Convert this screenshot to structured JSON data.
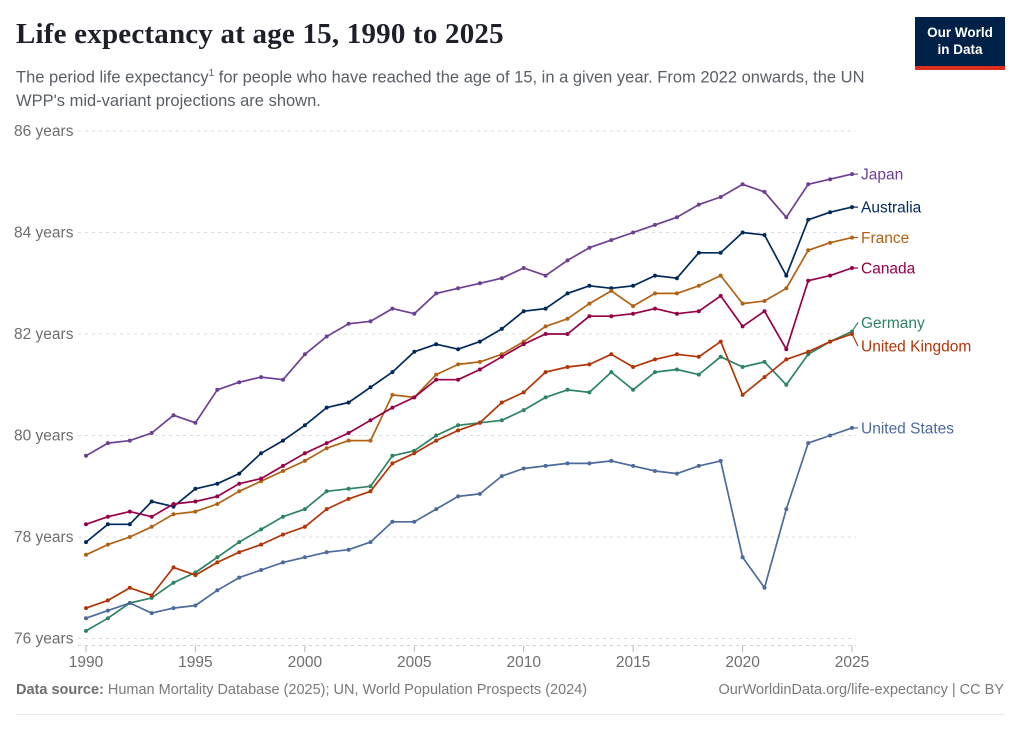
{
  "header": {
    "title": "Life expectancy at age 15, 1990 to 2025",
    "subtitle_pre": "The period life expectancy",
    "subtitle_sup": "1",
    "subtitle_post": " for people who have reached the age of 15, in a given year. From 2022 onwards, the UN WPP's mid-variant projections are shown."
  },
  "logo": {
    "line1": "Our World",
    "line2": "in Data",
    "bg_color": "#002147",
    "accent_color": "#dc2e1c"
  },
  "footer": {
    "source_label": "Data source:",
    "source_text": " Human Mortality Database (2025); UN, World Population Prospects (2024)",
    "citation": "OurWorldinData.org/life-expectancy | CC BY"
  },
  "chart_data": {
    "type": "line",
    "title": "Life expectancy at age 15, 1990 to 2025",
    "xlabel": "",
    "ylabel": "years",
    "xlim": [
      1990,
      2025
    ],
    "ylim": [
      75.8,
      86.3
    ],
    "grid": "horizontal-dashed",
    "legend_position": "right-end-labels",
    "x_ticks": [
      1990,
      1995,
      2000,
      2005,
      2010,
      2015,
      2020,
      2025
    ],
    "y_ticks": [
      {
        "value": 86,
        "label": "86 years"
      },
      {
        "value": 84,
        "label": "84 years"
      },
      {
        "value": 82,
        "label": "82 years"
      },
      {
        "value": 80,
        "label": "80 years"
      },
      {
        "value": 78,
        "label": "78 years"
      },
      {
        "value": 76,
        "label": "76 years"
      }
    ],
    "x": [
      1990,
      1991,
      1992,
      1993,
      1994,
      1995,
      1996,
      1997,
      1998,
      1999,
      2000,
      2001,
      2002,
      2003,
      2004,
      2005,
      2006,
      2007,
      2008,
      2009,
      2010,
      2011,
      2012,
      2013,
      2014,
      2015,
      2016,
      2017,
      2018,
      2019,
      2020,
      2021,
      2022,
      2023,
      2024,
      2025
    ],
    "series": [
      {
        "name": "Japan",
        "color": "#6d3e91",
        "label_dy": 0,
        "values": [
          79.6,
          79.85,
          79.9,
          80.05,
          80.4,
          80.25,
          80.9,
          81.05,
          81.15,
          81.1,
          81.6,
          81.95,
          82.2,
          82.25,
          82.5,
          82.4,
          82.8,
          82.9,
          83.0,
          83.1,
          83.3,
          83.15,
          83.45,
          83.7,
          83.85,
          84.0,
          84.15,
          84.3,
          84.55,
          84.7,
          84.95,
          84.8,
          84.3,
          84.95,
          85.05,
          85.15
        ]
      },
      {
        "name": "Australia",
        "color": "#00295b",
        "label_dy": 0,
        "values": [
          77.9,
          78.25,
          78.25,
          78.7,
          78.6,
          78.95,
          79.05,
          79.25,
          79.65,
          79.9,
          80.2,
          80.55,
          80.65,
          80.95,
          81.25,
          81.65,
          81.8,
          81.7,
          81.85,
          82.1,
          82.45,
          82.5,
          82.8,
          82.95,
          82.9,
          82.95,
          83.15,
          83.1,
          83.6,
          83.6,
          84.0,
          83.95,
          83.15,
          84.25,
          84.4,
          84.5
        ]
      },
      {
        "name": "France",
        "color": "#b16214",
        "label_dy": 0,
        "values": [
          77.65,
          77.85,
          78.0,
          78.2,
          78.45,
          78.5,
          78.65,
          78.9,
          79.1,
          79.3,
          79.5,
          79.75,
          79.9,
          79.9,
          80.8,
          80.75,
          81.2,
          81.4,
          81.45,
          81.6,
          81.85,
          82.15,
          82.3,
          82.6,
          82.85,
          82.55,
          82.8,
          82.8,
          82.95,
          83.15,
          82.6,
          82.65,
          82.9,
          83.65,
          83.8,
          83.9
        ]
      },
      {
        "name": "Canada",
        "color": "#970046",
        "label_dy": 0,
        "values": [
          78.25,
          78.4,
          78.5,
          78.4,
          78.65,
          78.7,
          78.8,
          79.05,
          79.15,
          79.4,
          79.65,
          79.85,
          80.05,
          80.3,
          80.55,
          80.75,
          81.1,
          81.1,
          81.3,
          81.55,
          81.8,
          82.0,
          82.0,
          82.35,
          82.35,
          82.4,
          82.5,
          82.4,
          82.45,
          82.75,
          82.15,
          82.45,
          81.7,
          83.05,
          83.15,
          83.3
        ]
      },
      {
        "name": "Germany",
        "color": "#2c8465",
        "label_dy": -9,
        "values": [
          76.15,
          76.4,
          76.7,
          76.8,
          77.1,
          77.3,
          77.6,
          77.9,
          78.15,
          78.4,
          78.55,
          78.9,
          78.95,
          79.0,
          79.6,
          79.7,
          80.0,
          80.2,
          80.25,
          80.3,
          80.5,
          80.75,
          80.9,
          80.85,
          81.25,
          80.9,
          81.25,
          81.3,
          81.2,
          81.55,
          81.35,
          81.45,
          81.0,
          81.6,
          81.85,
          82.05
        ]
      },
      {
        "name": "United Kingdom",
        "color": "#b13507",
        "label_dy": 12,
        "values": [
          76.6,
          76.75,
          77.0,
          76.85,
          77.4,
          77.25,
          77.5,
          77.7,
          77.85,
          78.05,
          78.2,
          78.55,
          78.75,
          78.9,
          79.45,
          79.65,
          79.9,
          80.1,
          80.25,
          80.65,
          80.85,
          81.25,
          81.35,
          81.4,
          81.6,
          81.35,
          81.5,
          81.6,
          81.55,
          81.85,
          80.8,
          81.15,
          81.5,
          81.65,
          81.85,
          82.0
        ]
      },
      {
        "name": "United States",
        "color": "#4c6a9c",
        "label_dy": 0,
        "values": [
          76.4,
          76.55,
          76.7,
          76.5,
          76.6,
          76.65,
          76.95,
          77.2,
          77.35,
          77.5,
          77.6,
          77.7,
          77.75,
          77.9,
          78.3,
          78.3,
          78.55,
          78.8,
          78.85,
          79.2,
          79.35,
          79.4,
          79.45,
          79.45,
          79.5,
          79.4,
          79.3,
          79.25,
          79.4,
          79.5,
          77.6,
          77.0,
          78.55,
          79.85,
          80.0,
          80.15
        ]
      }
    ]
  }
}
